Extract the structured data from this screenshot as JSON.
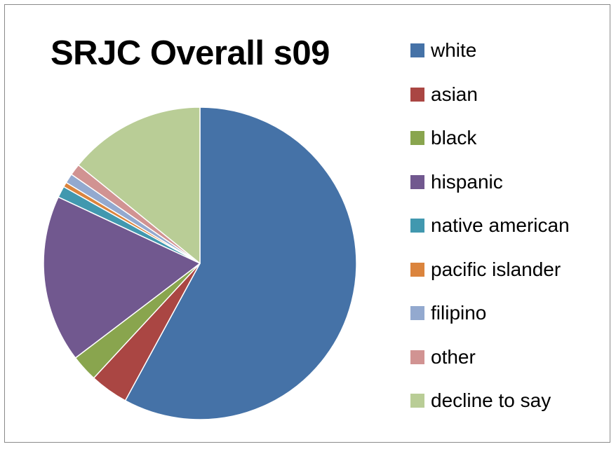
{
  "chart_data": {
    "type": "pie",
    "title": "SRJC Overall s09",
    "legend_position": "right",
    "start_angle_deg": 0,
    "direction": "clockwise",
    "slices": [
      {
        "label": "white",
        "value": 58.5,
        "color": "#4572A7"
      },
      {
        "label": "asian",
        "value": 4.0,
        "color": "#AA4643"
      },
      {
        "label": "black",
        "value": 2.8,
        "color": "#89A54E"
      },
      {
        "label": "hispanic",
        "value": 17.5,
        "color": "#71588F"
      },
      {
        "label": "native american",
        "value": 1.2,
        "color": "#4198AF"
      },
      {
        "label": "pacific islander",
        "value": 0.5,
        "color": "#DB843D"
      },
      {
        "label": "filipino",
        "value": 1.0,
        "color": "#93A9CF"
      },
      {
        "label": "other",
        "value": 1.2,
        "color": "#D19392"
      },
      {
        "label": "decline to say",
        "value": 14.3,
        "color": "#B9CD96"
      }
    ]
  }
}
